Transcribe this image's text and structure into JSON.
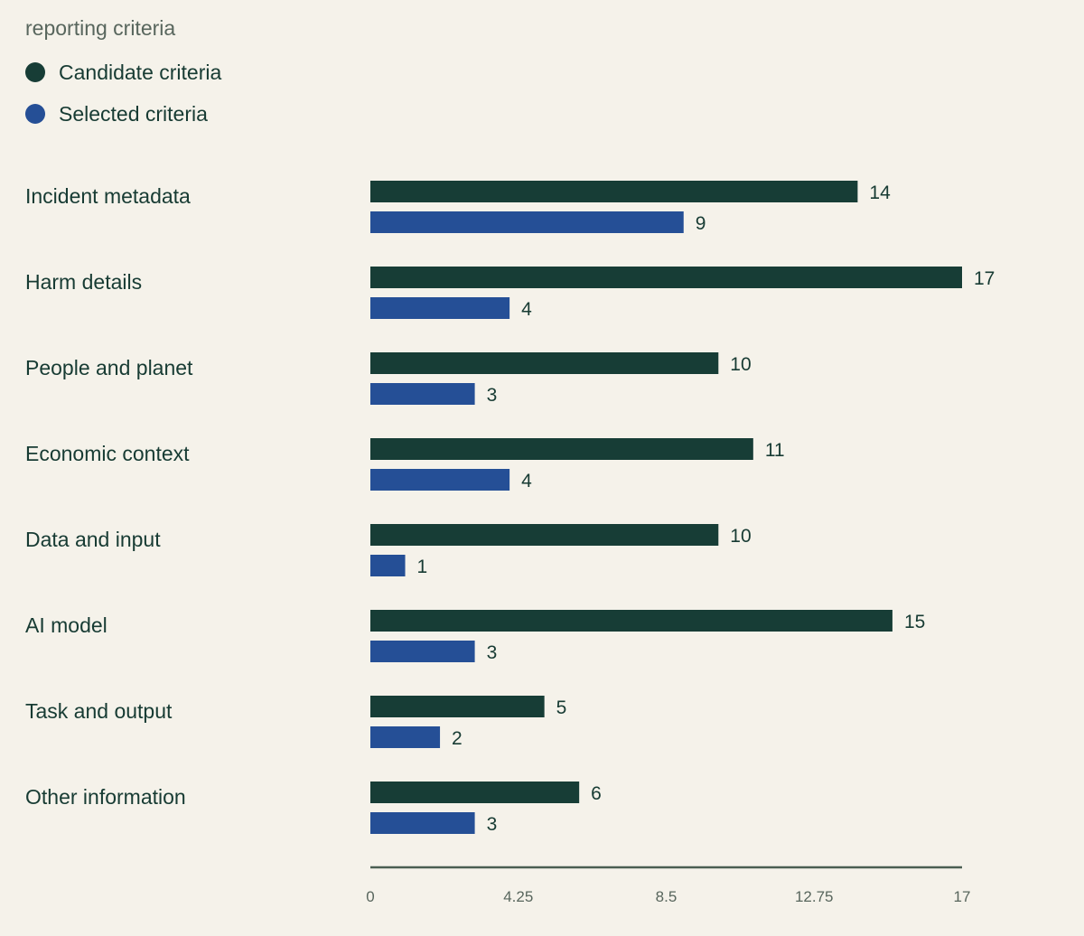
{
  "subtitle": "reporting criteria",
  "legend": [
    {
      "label": "Candidate criteria",
      "color": "#173d36"
    },
    {
      "label": "Selected criteria",
      "color": "#254f96"
    }
  ],
  "chart_data": {
    "type": "bar",
    "orientation": "horizontal",
    "categories": [
      "Incident metadata",
      "Harm details",
      "People and planet",
      "Economic context",
      "Data and input",
      "AI model",
      "Task and output",
      "Other information"
    ],
    "series": [
      {
        "name": "Candidate criteria",
        "color": "#173d36",
        "values": [
          14,
          17,
          10,
          11,
          10,
          15,
          5,
          6
        ]
      },
      {
        "name": "Selected criteria",
        "color": "#254f96",
        "values": [
          9,
          4,
          3,
          4,
          1,
          3,
          2,
          3
        ]
      }
    ],
    "xlim": [
      0,
      17
    ],
    "x_ticks": [
      "0",
      "4.25",
      "8.5",
      "12.75",
      "17"
    ],
    "legend_position": "top-left",
    "grid": false
  }
}
